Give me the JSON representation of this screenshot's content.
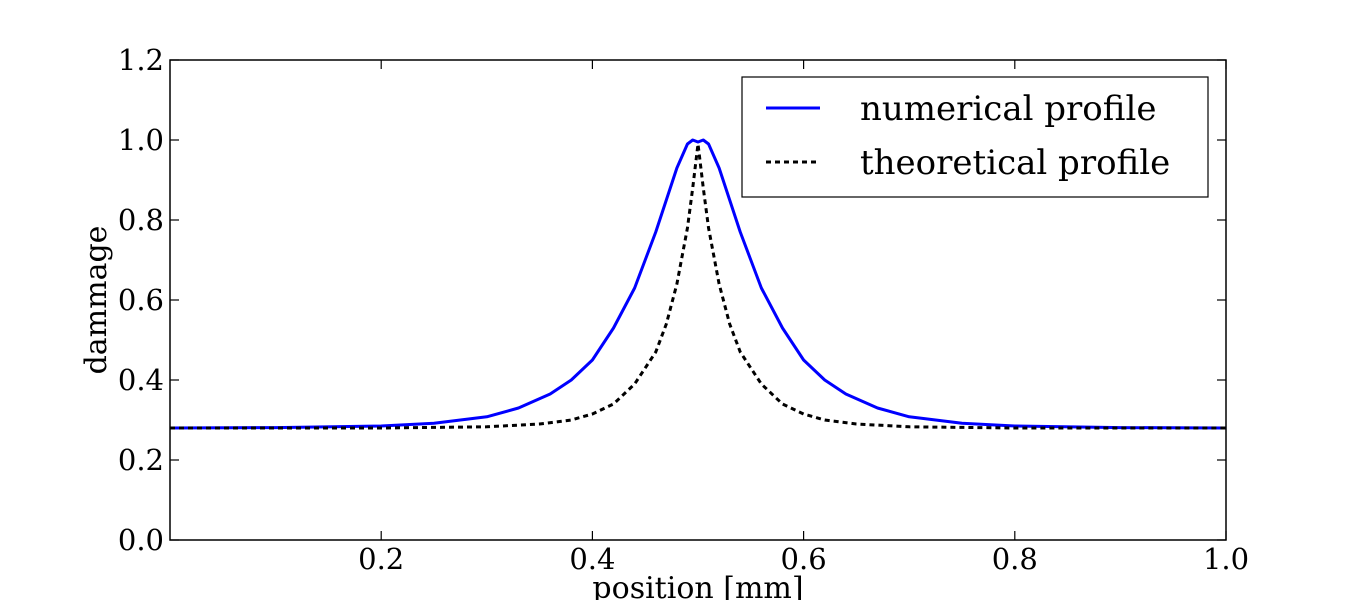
{
  "chart_data": {
    "type": "line",
    "xlabel": "position [mm]",
    "ylabel": "dammage",
    "xlim": [
      0.0,
      1.0
    ],
    "ylim": [
      0.0,
      1.2
    ],
    "xticks": [
      0.2,
      0.4,
      0.6,
      0.8,
      1.0
    ],
    "xtick_labels": [
      "0.2",
      "0.4",
      "0.6",
      "0.8",
      "1.0"
    ],
    "yticks": [
      0.0,
      0.2,
      0.4,
      0.6,
      0.8,
      1.0,
      1.2
    ],
    "ytick_labels": [
      "0.0",
      "0.2",
      "0.4",
      "0.6",
      "0.8",
      "1.0",
      "1.2"
    ],
    "grid": false,
    "legend_position": "top-right",
    "series": [
      {
        "name": "numerical profile",
        "color": "#0000ff",
        "style": "solid",
        "x": [
          0.0,
          0.1,
          0.2,
          0.25,
          0.3,
          0.33,
          0.36,
          0.38,
          0.4,
          0.42,
          0.44,
          0.45,
          0.46,
          0.47,
          0.48,
          0.49,
          0.495,
          0.5,
          0.505,
          0.51,
          0.52,
          0.53,
          0.54,
          0.55,
          0.56,
          0.58,
          0.6,
          0.62,
          0.64,
          0.67,
          0.7,
          0.75,
          0.8,
          0.9,
          1.0
        ],
        "y": [
          0.28,
          0.281,
          0.285,
          0.292,
          0.308,
          0.33,
          0.365,
          0.4,
          0.45,
          0.53,
          0.63,
          0.7,
          0.77,
          0.85,
          0.93,
          0.99,
          1.0,
          0.995,
          1.0,
          0.99,
          0.93,
          0.85,
          0.77,
          0.7,
          0.63,
          0.53,
          0.45,
          0.4,
          0.365,
          0.33,
          0.308,
          0.292,
          0.285,
          0.281,
          0.28
        ]
      },
      {
        "name": "theoretical profile",
        "color": "#000000",
        "style": "dashed",
        "x": [
          0.0,
          0.1,
          0.2,
          0.3,
          0.35,
          0.38,
          0.4,
          0.42,
          0.44,
          0.46,
          0.47,
          0.48,
          0.49,
          0.495,
          0.5,
          0.505,
          0.51,
          0.52,
          0.53,
          0.54,
          0.56,
          0.58,
          0.6,
          0.62,
          0.65,
          0.7,
          0.8,
          0.9,
          1.0
        ],
        "y": [
          0.28,
          0.28,
          0.28,
          0.283,
          0.29,
          0.3,
          0.315,
          0.34,
          0.39,
          0.47,
          0.54,
          0.64,
          0.78,
          0.88,
          0.99,
          0.88,
          0.78,
          0.64,
          0.54,
          0.47,
          0.39,
          0.34,
          0.315,
          0.3,
          0.29,
          0.283,
          0.28,
          0.28,
          0.28
        ]
      }
    ]
  }
}
